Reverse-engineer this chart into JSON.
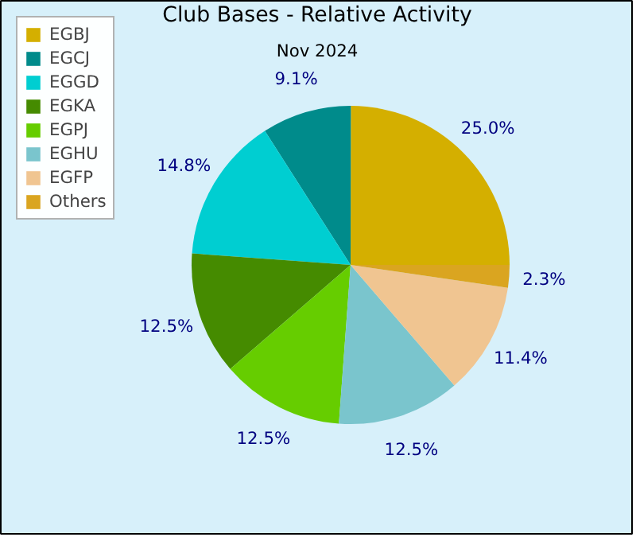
{
  "chart_data": {
    "type": "pie",
    "title": "Club Bases - Relative Activity",
    "subtitle": "Nov 2024",
    "categories": [
      "EGBJ",
      "EGCJ",
      "EGGD",
      "EGKA",
      "EGPJ",
      "EGHU",
      "EGFP",
      "Others"
    ],
    "values": [
      25.0,
      9.1,
      14.8,
      12.5,
      12.5,
      12.5,
      11.4,
      2.3
    ],
    "colors": [
      "#d4af00",
      "#008b8b",
      "#00ced1",
      "#458b00",
      "#66cd00",
      "#7ac5cd",
      "#f0c591",
      "#daa520"
    ],
    "value_labels": [
      "25.0%",
      "9.1%",
      "14.8%",
      "12.5%",
      "12.5%",
      "12.5%",
      "11.4%",
      "2.3%"
    ],
    "legend": "top left"
  }
}
